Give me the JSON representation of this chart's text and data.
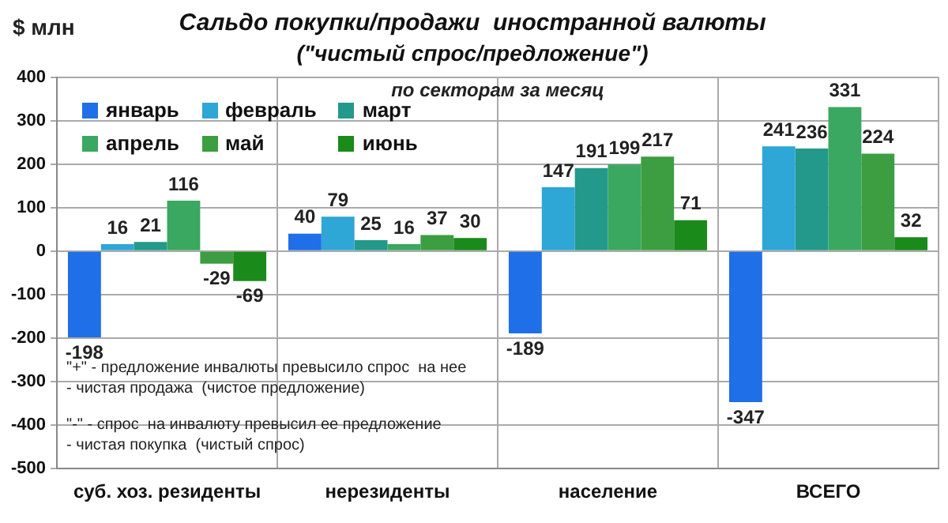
{
  "chart_data": {
    "type": "bar",
    "title": "Сальдо покупки/продажи  иностранной валюты",
    "subtitle": "(\"чистый спрос/предложение\")",
    "ylabel": "$ млн",
    "annotations": [
      "по секторам за месяц",
      "\"+\" - предложение инвалюты превысило спрос  на нее",
      "- чистая продажа  (чистое предложение)",
      "\"-\" - спрос  на инвалюту превысил ее предложение",
      "- чистая покупка  (чистый спрос)"
    ],
    "categories": [
      "суб. хоз. резиденты",
      "нерезиденты",
      "население",
      "ВСЕГО"
    ],
    "series": [
      {
        "name": "январь",
        "color": "#1f6fe8",
        "values": [
          -198,
          40,
          -189,
          -347
        ]
      },
      {
        "name": "февраль",
        "color": "#2ea6d6",
        "values": [
          16,
          79,
          147,
          241
        ]
      },
      {
        "name": "март",
        "color": "#22998a",
        "values": [
          21,
          25,
          191,
          236
        ]
      },
      {
        "name": "апрель",
        "color": "#3aa860",
        "values": [
          116,
          16,
          199,
          331
        ]
      },
      {
        "name": "май",
        "color": "#3c9e40",
        "values": [
          -29,
          37,
          217,
          224
        ]
      },
      {
        "name": "июнь",
        "color": "#1a8a1a",
        "values": [
          -69,
          30,
          71,
          32
        ]
      }
    ],
    "ylim": [
      -500,
      400
    ],
    "yticks": [
      -500,
      -400,
      -300,
      -200,
      -100,
      0,
      100,
      200,
      300,
      400
    ],
    "grid": true,
    "legend": "top left",
    "data_labels": true
  }
}
